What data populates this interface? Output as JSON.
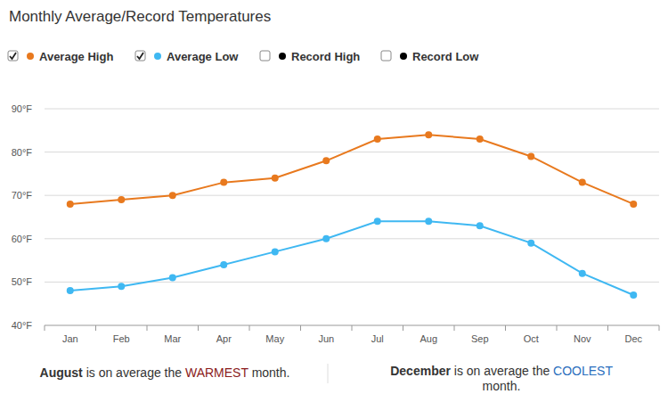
{
  "chart_data": {
    "type": "line",
    "title": "Monthly Average/Record Temperatures",
    "categories": [
      "Jan",
      "Feb",
      "Mar",
      "Apr",
      "May",
      "Jun",
      "Jul",
      "Aug",
      "Sep",
      "Oct",
      "Nov",
      "Dec"
    ],
    "series": [
      {
        "name": "Average High",
        "color": "#e8791e",
        "marker": "circle",
        "values": [
          68,
          69,
          70,
          73,
          74,
          78,
          83,
          84,
          83,
          79,
          73,
          68
        ]
      },
      {
        "name": "Average Low",
        "color": "#3fb8f2",
        "marker": "circle",
        "values": [
          48,
          49,
          51,
          54,
          57,
          60,
          64,
          64,
          63,
          59,
          52,
          47
        ]
      },
      {
        "name": "Record High",
        "color": "#000000",
        "marker": "circle",
        "values": [
          null,
          null,
          null,
          null,
          null,
          null,
          null,
          null,
          null,
          null,
          null,
          null
        ]
      },
      {
        "name": "Record Low",
        "color": "#000000",
        "marker": "circle",
        "values": [
          null,
          null,
          null,
          null,
          null,
          null,
          null,
          null,
          null,
          null,
          null,
          null
        ]
      }
    ],
    "ylim": [
      40,
      90
    ],
    "yticks": [
      {
        "value": 40,
        "label": "40°F"
      },
      {
        "value": 50,
        "label": "50°F"
      },
      {
        "value": 60,
        "label": "60°F"
      },
      {
        "value": 70,
        "label": "70°F"
      },
      {
        "value": 80,
        "label": "80°F"
      },
      {
        "value": 90,
        "label": "90°F"
      }
    ],
    "grid": true,
    "legend": "top",
    "annotations": [
      [
        "August",
        "is on average the",
        "WARMEST",
        "month."
      ],
      [
        "December",
        "is on average the",
        "COOLEST",
        "month."
      ]
    ]
  }
}
